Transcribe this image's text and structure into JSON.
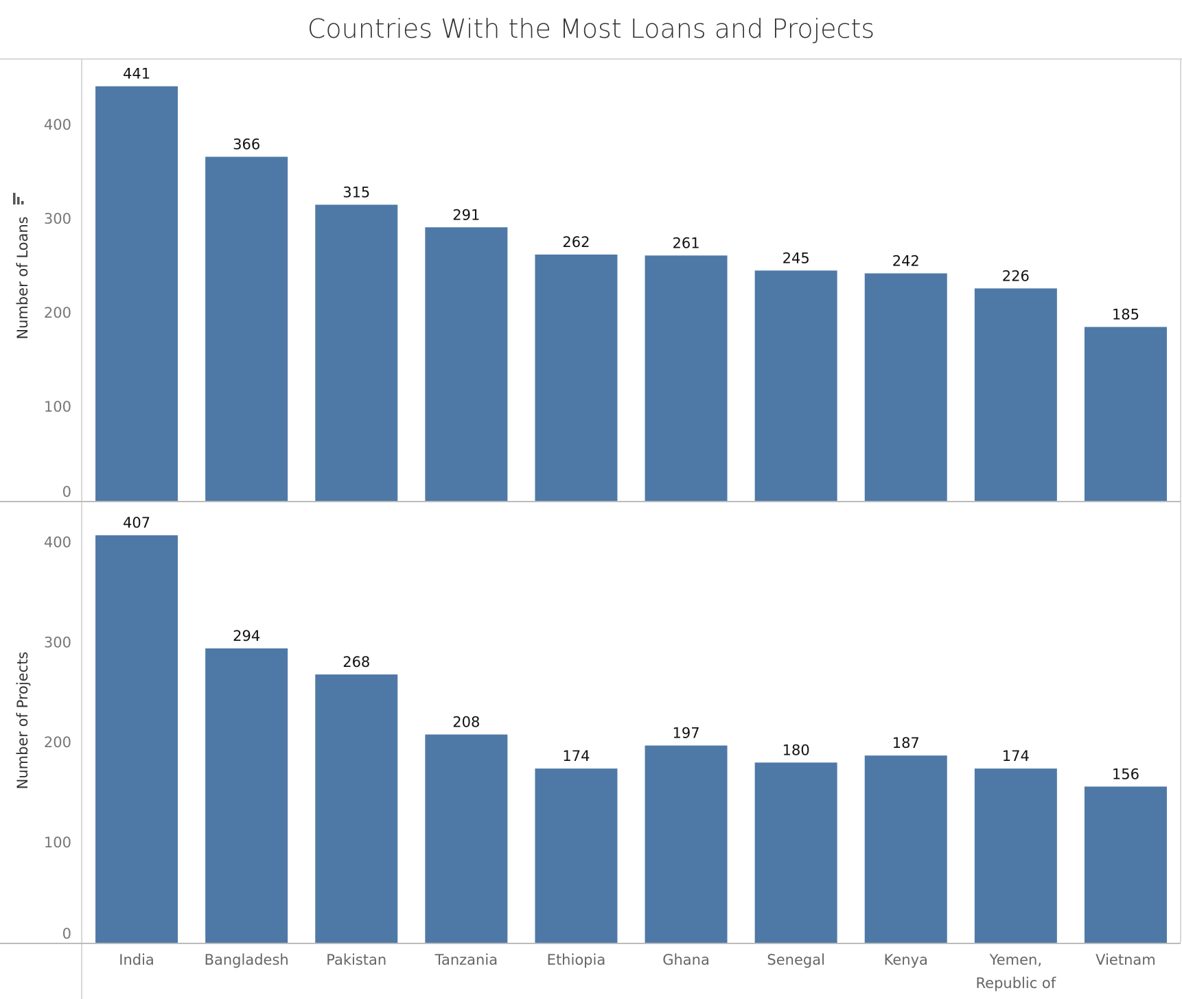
{
  "chart_data": {
    "type": "bar",
    "title": "Countries With the Most Loans and Projects",
    "categories": [
      "India",
      "Bangladesh",
      "Pakistan",
      "Tanzania",
      "Ethiopia",
      "Ghana",
      "Senegal",
      "Kenya",
      "Yemen, Republic of",
      "Vietnam"
    ],
    "bar_color": "#4e79a7",
    "panels": [
      {
        "ylabel": "Number of Loans",
        "ylim": [
          0,
          470
        ],
        "yticks": [
          0,
          100,
          200,
          300,
          400
        ],
        "values": [
          441,
          366,
          315,
          291,
          262,
          261,
          245,
          242,
          226,
          185
        ]
      },
      {
        "ylabel": "Number of Projects",
        "ylim": [
          0,
          440
        ],
        "yticks": [
          0,
          100,
          200,
          300,
          400
        ],
        "values": [
          407,
          294,
          268,
          208,
          174,
          197,
          180,
          187,
          174,
          156
        ]
      }
    ],
    "sort_icon": "sort-descending-icon",
    "grid": false,
    "legend": "none"
  }
}
